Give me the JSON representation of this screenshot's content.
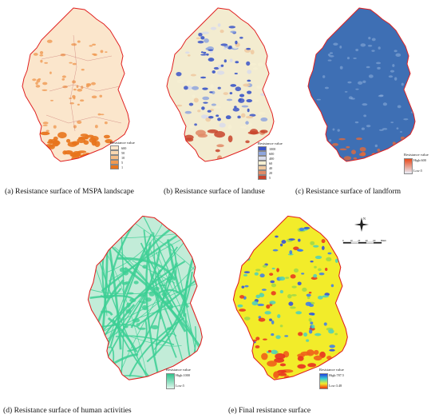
{
  "panels": {
    "a": {
      "caption": "(a) Resistance surface of MSPA landscape",
      "legend_title": "Resistance value",
      "legend_items": [
        {
          "label": "600",
          "color": "#fbe6cc"
        },
        {
          "label": "50",
          "color": "#f9d7b0"
        },
        {
          "label": "10",
          "color": "#f6bd86"
        },
        {
          "label": "5",
          "color": "#f09a52"
        },
        {
          "label": "1",
          "color": "#e8741c"
        }
      ],
      "fill_color": "#fbe6cc",
      "accent_color": "#e8741c"
    },
    "b": {
      "caption": "(b) Resistance surface of landuse",
      "legend_title": "Resistance value",
      "legend_items": [
        {
          "label": "1000",
          "color": "#3a55c8"
        },
        {
          "label": "600",
          "color": "#8fa6de"
        },
        {
          "label": "400",
          "color": "#d8dcec"
        },
        {
          "label": "60",
          "color": "#f6f0d2"
        },
        {
          "label": "40",
          "color": "#efc9a0"
        },
        {
          "label": "20",
          "color": "#e08a66"
        },
        {
          "label": "5",
          "color": "#c8442c"
        }
      ],
      "fill_color": "#f3ecd0",
      "accent_color": "#3a55c8"
    },
    "c": {
      "caption": "(c) Resistance surface of landform",
      "legend_title": "Resistance value",
      "legend_high": "High:600",
      "legend_low": "Low:5",
      "gradient_top": "#e84a1c",
      "gradient_bottom": "#e8eef8",
      "fill_color": "#3e6fb4",
      "accent_color": "#e46a3a"
    },
    "d": {
      "caption": "(d) Resistance surface of human activities",
      "legend_title": "Resistance value",
      "legend_high": "High:1000",
      "legend_low": "Low:5",
      "gradient_top": "#2fc48c",
      "gradient_bottom": "#e0f6ec",
      "fill_color": "#c2ecd8",
      "accent_color": "#3ccf94"
    },
    "e": {
      "caption": "(e) Final resistance surface",
      "legend_title": "Resistance value",
      "legend_high": "High:787.5",
      "legend_low": "Low:3.48",
      "gradient_top": "#2040e0",
      "gradient_bottom": "#f03010",
      "fill_color": "#f2ec2a",
      "accent_color": "#2a4ae6"
    }
  },
  "compass_letter": "N",
  "scale_labels": [
    "0",
    "10",
    "20",
    "40",
    "60",
    "80"
  ],
  "scale_unit": "km",
  "boundary_color": "#e02020"
}
